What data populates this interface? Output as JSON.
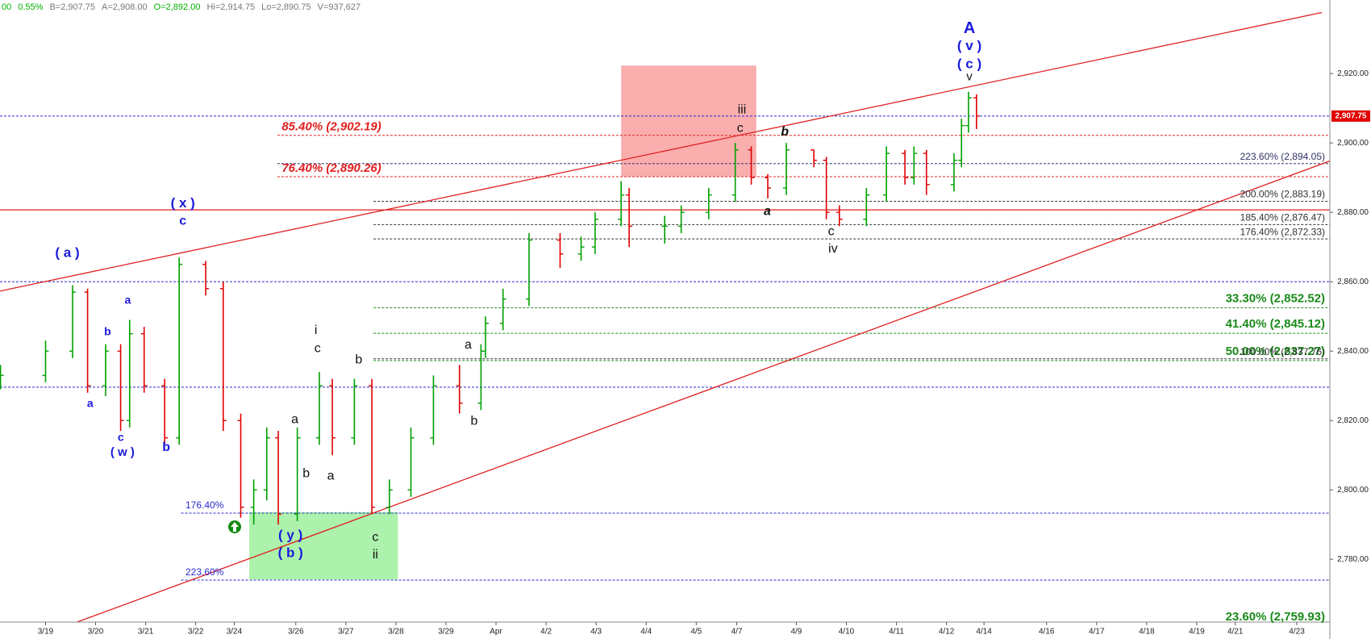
{
  "chart_data": {
    "type": "ohlc",
    "header": [
      {
        "text": "00",
        "color": "#00b000"
      },
      {
        "text": "0.55%",
        "color": "#00b000"
      },
      {
        "text": "B=2,907.75",
        "color": "#777777"
      },
      {
        "text": "A=2,908.00",
        "color": "#777777"
      },
      {
        "text": "O=2,892.00",
        "color": "#00b000"
      },
      {
        "text": "Hi=2,914.75",
        "color": "#777777"
      },
      {
        "text": "Lo=2,890.75",
        "color": "#777777"
      },
      {
        "text": "V=937,627",
        "color": "#777777"
      }
    ],
    "x": [
      -0.9,
      0,
      0.54,
      0.84,
      1.2,
      1.5,
      1.68,
      1.97,
      2.38,
      2.67,
      3.2,
      3.55,
      3.9,
      4.16,
      4.42,
      4.65,
      5.03,
      5.47,
      5.73,
      6.17,
      6.52,
      6.87,
      7.3,
      7.75,
      8.27,
      8.7,
      8.79,
      9.14,
      9.66,
      10.28,
      10.7,
      10.98,
      11.5,
      11.66,
      12.37,
      12.7,
      13.25,
      13.78,
      14.1,
      14.43,
      14.8,
      15.35,
      15.6,
      15.86,
      16.4,
      16.8,
      17.17,
      17.35,
      17.6,
      18.15,
      18.3,
      18.44,
      18.6
    ],
    "open": [
      2831,
      2833,
      2840,
      2857,
      2830,
      2840,
      2820,
      2845,
      2830,
      2815,
      2865,
      2858,
      2820,
      2795,
      2800,
      2815,
      2793,
      2815,
      2830,
      2815,
      2830,
      2795,
      2800,
      2815,
      2830,
      2825,
      2840,
      2848,
      2855,
      2872,
      2868,
      2870,
      2878,
      2885,
      2876,
      2876,
      2880,
      2885,
      2898,
      2890,
      2887,
      2898,
      2895,
      2880,
      2878,
      2885,
      2897,
      2890,
      2897,
      2888,
      2895,
      2905,
      2913
    ],
    "high": [
      2836,
      2843,
      2859,
      2858,
      2842,
      2842,
      2849,
      2847,
      2832,
      2867,
      2866,
      2860,
      2822,
      2803,
      2818,
      2817,
      2818,
      2834,
      2832,
      2832,
      2832,
      2803,
      2818,
      2833,
      2836,
      2842,
      2850,
      2858,
      2874,
      2874,
      2873,
      2880,
      2889,
      2887,
      2879,
      2882,
      2887,
      2900,
      2899,
      2891,
      2900,
      2898,
      2896,
      2882,
      2887,
      2899,
      2898,
      2899,
      2898,
      2897,
      2907,
      2914.75,
      2914
    ],
    "low": [
      2829,
      2831,
      2838,
      2828,
      2827,
      2817,
      2818,
      2828,
      2813,
      2813,
      2856,
      2817,
      2792,
      2790,
      2797,
      2790,
      2791,
      2813,
      2810,
      2813,
      2793,
      2793,
      2798,
      2813,
      2822,
      2823,
      2838,
      2846,
      2853,
      2864,
      2866,
      2868,
      2876,
      2870,
      2871,
      2874,
      2878,
      2883,
      2888,
      2884,
      2885,
      2893,
      2878,
      2876,
      2876,
      2883,
      2888,
      2888,
      2885,
      2886,
      2893,
      2903,
      2904
    ],
    "close": [
      2833,
      2840,
      2857,
      2830,
      2840,
      2820,
      2845,
      2830,
      2815,
      2865,
      2858,
      2820,
      2795,
      2800,
      2815,
      2793,
      2815,
      2830,
      2815,
      2830,
      2795,
      2800,
      2815,
      2830,
      2825,
      2840,
      2848,
      2855,
      2872,
      2868,
      2870,
      2878,
      2885,
      2876,
      2876,
      2880,
      2885,
      2898,
      2890,
      2887,
      2898,
      2895,
      2880,
      2878,
      2885,
      2897,
      2890,
      2897,
      2888,
      2895,
      2905,
      2913,
      2907.75
    ],
    "up_color": "#00a000",
    "down_color": "#e00000",
    "xlim": [
      -0.91,
      25.66
    ],
    "ylim": [
      2761.9,
      2941.2
    ],
    "xticks": [
      {
        "value": 0,
        "label": "3/19"
      },
      {
        "value": 1,
        "label": "3/20"
      },
      {
        "value": 2,
        "label": "3/21"
      },
      {
        "value": 3,
        "label": "3/22"
      },
      {
        "value": 3.77,
        "label": "3/24"
      },
      {
        "value": 5,
        "label": "3/26"
      },
      {
        "value": 6,
        "label": "3/27"
      },
      {
        "value": 7,
        "label": "3/28"
      },
      {
        "value": 8,
        "label": "3/29"
      },
      {
        "value": 9,
        "label": "Apr"
      },
      {
        "value": 10,
        "label": "4/2"
      },
      {
        "value": 11,
        "label": "4/3"
      },
      {
        "value": 12,
        "label": "4/4"
      },
      {
        "value": 13,
        "label": "4/5"
      },
      {
        "value": 13.81,
        "label": "4/7"
      },
      {
        "value": 15,
        "label": "4/9"
      },
      {
        "value": 16,
        "label": "4/10"
      },
      {
        "value": 17,
        "label": "4/11"
      },
      {
        "value": 18,
        "label": "4/12"
      },
      {
        "value": 18.75,
        "label": "4/14"
      },
      {
        "value": 20,
        "label": "4/16"
      },
      {
        "value": 21,
        "label": "4/17"
      },
      {
        "value": 22,
        "label": "4/18"
      },
      {
        "value": 23,
        "label": "4/19"
      },
      {
        "value": 23.77,
        "label": "4/21"
      },
      {
        "value": 25,
        "label": "4/23"
      }
    ],
    "yticks": [
      {
        "value": 2780,
        "label": "2,780.00"
      },
      {
        "value": 2800,
        "label": "2,800.00"
      },
      {
        "value": 2820,
        "label": "2,820.00"
      },
      {
        "value": 2840,
        "label": "2,840.00"
      },
      {
        "value": 2860,
        "label": "2,860.00"
      },
      {
        "value": 2880,
        "label": "2,880.00"
      },
      {
        "value": 2900,
        "label": "2,900.00"
      },
      {
        "value": 2920,
        "label": "2,920.00"
      }
    ],
    "last_price": {
      "value": 2907.75,
      "label": "2,907.75"
    },
    "levels": [
      {
        "value": 2907.75,
        "color": "#2a2ad0"
      },
      {
        "value": 2902.19,
        "color": "#e02020",
        "label": "85.40% (2,902.19)"
      },
      {
        "value": 2894.05,
        "color": "#333366",
        "label": "223.60% (2,894.05)"
      },
      {
        "value": 2890.26,
        "color": "#e02020",
        "label": "76.40% (2,890.26)"
      },
      {
        "value": 2883.19,
        "color": "#333333",
        "label": "200.00% (2,883.19)"
      },
      {
        "value": 2880.7,
        "color": "#e02020"
      },
      {
        "value": 2876.47,
        "color": "#333333",
        "label": "185.40% (2,876.47)"
      },
      {
        "value": 2872.33,
        "color": "#333333",
        "label": "176.40% (2,872.33)"
      },
      {
        "value": 2860,
        "color": "#2a2ad0"
      },
      {
        "value": 2852.52,
        "color": "#1a8a1a",
        "label": "33.30% (2,852.52)"
      },
      {
        "value": 2845.12,
        "color": "#1a8a1a",
        "label": "41.40% (2,845.12)"
      },
      {
        "value": 2837.27,
        "color": "#1a8a1a",
        "label": "50.00% (2,837.27)"
      },
      {
        "value": 2837.76,
        "color": "#333333",
        "label": "100.00% (2,837.76)"
      },
      {
        "value": 2829.6,
        "color": "#2a2ad0"
      },
      {
        "value": 2793.3,
        "color": "#2a2ad0",
        "label": "176.40%"
      },
      {
        "value": 2774,
        "color": "#2a2ad0",
        "label": "223.60%"
      },
      {
        "value": 2759.93,
        "color": "#1a8a1a",
        "label": "23.60% (2,759.93)"
      }
    ],
    "trendlines": [
      {
        "x": [
          -0.91,
          25.5
        ],
        "y": [
          2857.3,
          2937.6
        ],
        "color": "#e02020"
      },
      {
        "x": [
          0.63,
          25.66
        ],
        "y": [
          2761.9,
          2894.8
        ],
        "color": "#e02020"
      }
    ],
    "boxes": [
      {
        "x": [
          11.5,
          14.2
        ],
        "y": [
          2890.3,
          2922.3
        ],
        "color": "#f9a0a0"
      },
      {
        "x": [
          4.07,
          7.04
        ],
        "y": [
          2774.2,
          2793.6
        ],
        "color": "#9ef09e"
      }
    ],
    "annotations": [
      {
        "text": "A",
        "color": "#1a1adb"
      },
      {
        "text": "( v )",
        "color": "#1a1adb"
      },
      {
        "text": "( c )",
        "color": "#1a1adb"
      },
      {
        "text": "v",
        "color": "#111111"
      },
      {
        "text": "iii",
        "color": "#111111"
      },
      {
        "text": "c",
        "color": "#111111"
      },
      {
        "text": "b",
        "color": "#111111"
      },
      {
        "text": "a",
        "color": "#111111"
      },
      {
        "text": "c",
        "color": "#111111"
      },
      {
        "text": "iv",
        "color": "#111111"
      },
      {
        "text": "( x )",
        "color": "#1a1adb"
      },
      {
        "text": "c",
        "color": "#1a1adb"
      },
      {
        "text": "( a )",
        "color": "#1a1adb"
      },
      {
        "text": "a",
        "color": "#1a1adb"
      },
      {
        "text": "b",
        "color": "#1a1adb"
      },
      {
        "text": "a",
        "color": "#1a1adb"
      },
      {
        "text": "c",
        "color": "#1a1adb"
      },
      {
        "text": "( w )",
        "color": "#1a1adb"
      },
      {
        "text": "b",
        "color": "#1a1adb"
      },
      {
        "text": "i",
        "color": "#111111"
      },
      {
        "text": "c",
        "color": "#111111"
      },
      {
        "text": "b",
        "color": "#111111"
      },
      {
        "text": "a",
        "color": "#111111"
      },
      {
        "text": "b",
        "color": "#111111"
      },
      {
        "text": "a",
        "color": "#111111"
      },
      {
        "text": "a",
        "color": "#111111"
      },
      {
        "text": "b",
        "color": "#111111"
      },
      {
        "text": "( y )",
        "color": "#1a1adb"
      },
      {
        "text": "( b )",
        "color": "#1a1adb"
      },
      {
        "text": "c",
        "color": "#111111"
      },
      {
        "text": "ii",
        "color": "#111111"
      }
    ]
  }
}
